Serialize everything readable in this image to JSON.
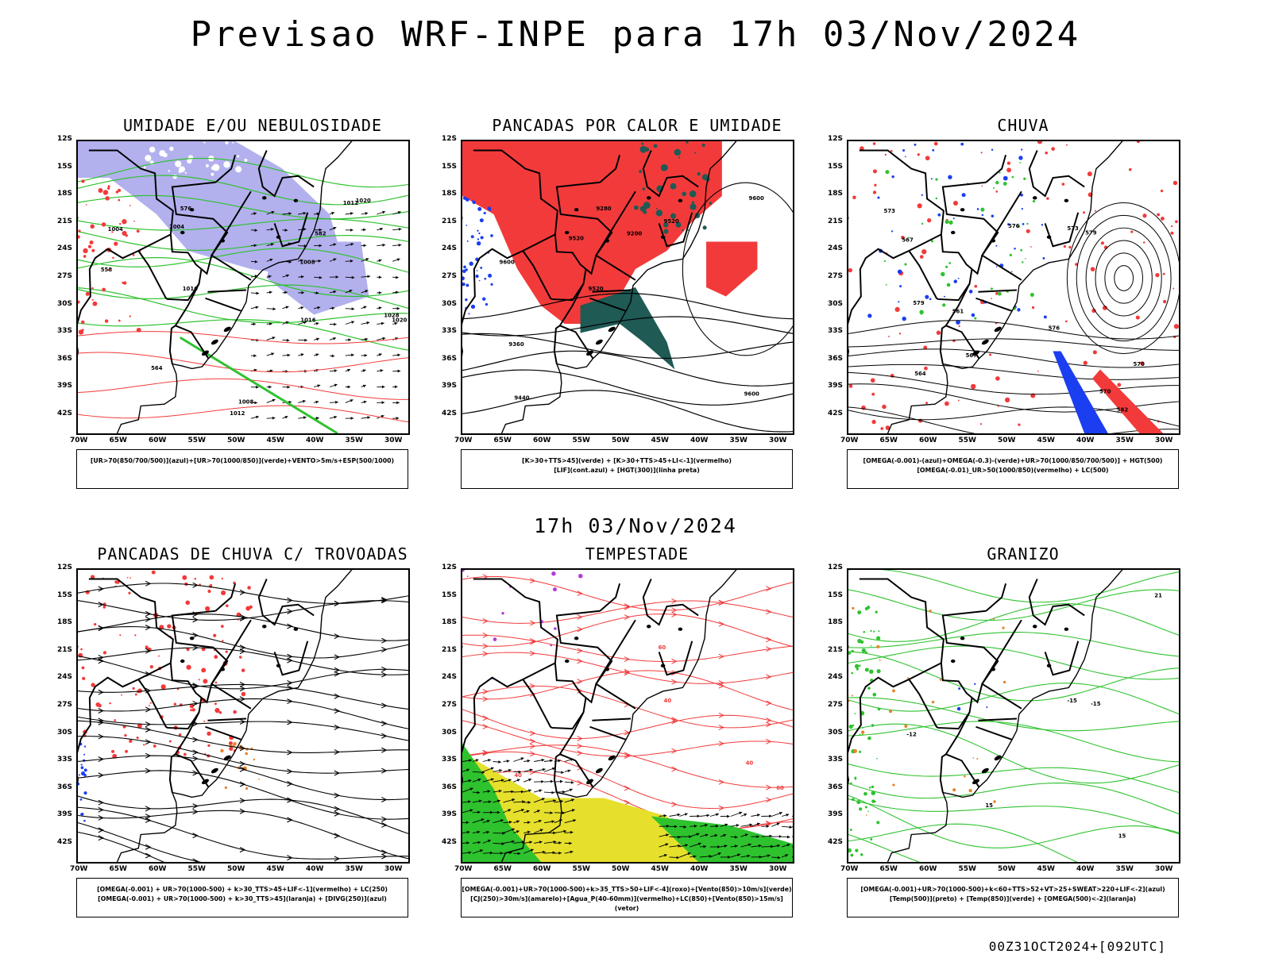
{
  "title": "Previsao WRF-INPE  para 17h 03/Nov/2024",
  "mid_time": "17h 03/Nov/2024",
  "run_label": "00Z31OCT2024+[092UTC]",
  "lat_labels": [
    "12S",
    "15S",
    "18S",
    "21S",
    "24S",
    "27S",
    "30S",
    "33S",
    "36S",
    "39S",
    "42S"
  ],
  "lon_labels": [
    "70W",
    "65W",
    "60W",
    "55W",
    "50W",
    "45W",
    "40W",
    "35W",
    "30W"
  ],
  "colors": {
    "red": "#f23a3a",
    "green": "#2ec22e",
    "blue": "#1a3ef0",
    "lavender": "#b3b0ee",
    "teal": "#1f5a55",
    "yellow": "#e6e02d",
    "orange": "#e8822a",
    "purple": "#b23ad8"
  },
  "panels": [
    {
      "title": "UMIDADE E/OU NEBULOSIDADE",
      "legend": "[UR>70(850/700/500)](azul)+[UR>70(1000/850)](verde)+VENTO>5m/s+ESP(500/1000)",
      "contour_labels": [
        "1004",
        "1004",
        "1008",
        "1008",
        "1012",
        "1012",
        "1016",
        "1016",
        "1020",
        "1020",
        "1028",
        "576",
        "582",
        "564",
        "558"
      ]
    },
    {
      "title": "PANCADAS POR CALOR E UMIDADE",
      "legend": "[K>30+TTS>45](verde) + [K>30+TTS>45+LI<-1](vermelho)\n[LIF](cont.azul) + [HGT(300)](linha preta)",
      "contour_labels": [
        "9600",
        "9600",
        "9600",
        "9520",
        "9520",
        "9440",
        "9280",
        "9200",
        "9360",
        "9520"
      ]
    },
    {
      "title": "CHUVA",
      "legend": "[OMEGA(-0.001)-(azul)+OMEGA(-0.3)-(verde)+UR>70(1000/850/700/500)] + HGT(500)\n[OMEGA(-0.01)_UR>50(1000/850)(vermelho) + LC(500)",
      "contour_labels": [
        "582",
        "579",
        "576",
        "573",
        "570",
        "567",
        "564",
        "561",
        "579",
        "576",
        "573",
        "570",
        "567"
      ]
    },
    {
      "title": "PANCADAS DE CHUVA C/ TROVOADAS",
      "legend": "[OMEGA(-0.001) + UR>70(1000-500) + k>30_TTS>45+LIF<-1](vermelho) + LC(250)\n[OMEGA(-0.001) + UR>70(1000-500) + k>30_TTS>45](laranja) + [DIVG(250)](azul)",
      "contour_labels": []
    },
    {
      "title": "TEMPESTADE",
      "legend": "[OMEGA(-0.001)+UR>70(1000-500)+k>35_TTS>50+LIF<-4](roxo)+[Vento(850)>10m/s](verde)\n[CJ(250)>30m/s](amarelo)+[Agua_P(40-60mm)](vermelho)+LC(850)+[Vento(850)>15m/s](vetor)",
      "contour_labels": [
        "40",
        "40",
        "40",
        "60",
        "60"
      ]
    },
    {
      "title": "GRANIZO",
      "legend": "[OMEGA(-0.001)+UR>70(1000-500)+k<60+TTS>52+VT>25+SWEAT>220+LIF<-2](azul)\n[Temp(500)](preto) + [Temp(850)](verde) + [OMEGA(500)<-2](laranja)",
      "contour_labels": [
        "-15",
        "-15",
        "-12",
        "15",
        "15",
        "21"
      ]
    }
  ]
}
